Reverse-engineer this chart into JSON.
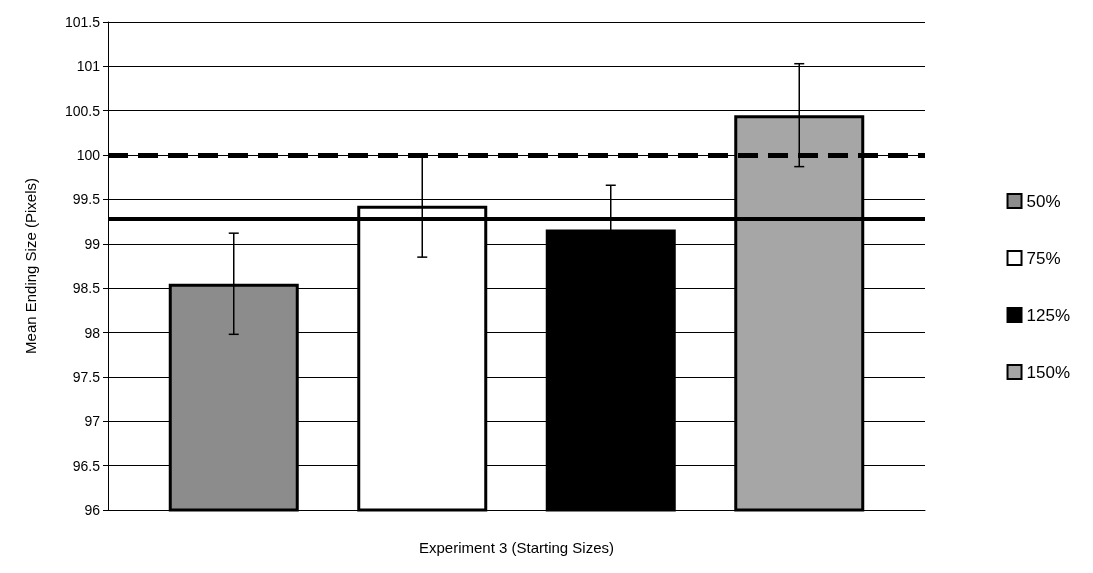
{
  "chart_data": {
    "type": "bar",
    "xlabel": "Experiment 3 (Starting Sizes)",
    "ylabel": "Mean Ending Size (Pixels)",
    "categories": [
      null
    ],
    "series": [
      {
        "name": "50%",
        "color": "#8c8c8c",
        "values": [
          98.55
        ],
        "errors": [
          0.57
        ]
      },
      {
        "name": "75%",
        "color": "#ffffff",
        "values": [
          99.43
        ],
        "errors": [
          0.58
        ]
      },
      {
        "name": "125%",
        "color": "#000000",
        "values": [
          99.16
        ],
        "errors": [
          0.5
        ]
      },
      {
        "name": "150%",
        "color": "#a6a6a6",
        "values": [
          100.45
        ],
        "errors": [
          0.58
        ]
      }
    ],
    "ylim": [
      96,
      101.5
    ],
    "yticks": [
      96,
      96.5,
      97,
      97.5,
      98,
      98.5,
      99,
      99.5,
      100,
      100.5,
      101,
      101.5
    ],
    "ref_lines": [
      {
        "axis": "y",
        "value": 100,
        "line_style": "dashed",
        "color": "#000000"
      },
      {
        "axis": "y",
        "value": 99.28,
        "line_style": "solid",
        "color": "#000000"
      }
    ],
    "grid": "y",
    "legend": "right"
  }
}
